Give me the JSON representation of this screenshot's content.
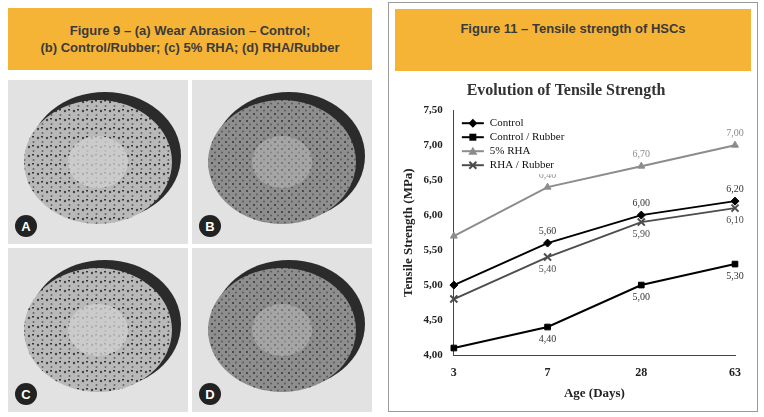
{
  "figure_9": {
    "caption": [
      "Figure 9 – (a) Wear Abrasion – Control;",
      "(b) Control/Rubber; (c) 5% RHA; (d) RHA/Rubber"
    ],
    "panels": [
      "A",
      "B",
      "C",
      "D"
    ]
  },
  "figure_11": {
    "caption": "Figure 11 – Tensile strength of HSCs"
  },
  "chart_data": {
    "type": "line",
    "title": "Evolution of Tensile Strength",
    "x_label": "Age (Days)",
    "y_label": "Tensile Strength (MPa)",
    "categories": [
      "3",
      "7",
      "28",
      "63"
    ],
    "series": [
      {
        "name": "Control",
        "color": "#000000",
        "marker": "diamond",
        "values": [
          5.0,
          5.6,
          6.0,
          6.2
        ],
        "value_labels": [
          null,
          "5,60",
          "6,00",
          "6,20"
        ]
      },
      {
        "name": "Control / Rubber",
        "color": "#000000",
        "marker": "square",
        "values": [
          4.1,
          4.4,
          5.0,
          5.3
        ],
        "value_labels": [
          null,
          "4,40",
          "5,00",
          "5,30"
        ]
      },
      {
        "name": "5% RHA",
        "color": "#8c8c8c",
        "marker": "triangle",
        "values": [
          5.7,
          6.4,
          6.7,
          7.0
        ],
        "value_labels": [
          null,
          "6,40",
          "6,70",
          "7,00"
        ]
      },
      {
        "name": "RHA / Rubber",
        "color": "#4d4d4d",
        "marker": "x",
        "values": [
          4.8,
          5.4,
          5.9,
          6.1
        ],
        "value_labels": [
          null,
          "5,40",
          "5,90",
          "6,10"
        ]
      }
    ],
    "ylim": [
      4,
      7.5
    ],
    "yticks": [
      {
        "value": 4,
        "label": "4,00"
      },
      {
        "value": 4.5,
        "label": "4,50"
      },
      {
        "value": 5,
        "label": "5,00"
      },
      {
        "value": 5.5,
        "label": "5,50"
      },
      {
        "value": 6,
        "label": "6,00"
      },
      {
        "value": 6.5,
        "label": "6,50"
      },
      {
        "value": 7,
        "label": "7,00"
      },
      {
        "value": 7.5,
        "label": "7,50"
      }
    ],
    "grid": false,
    "legend": "upper left",
    "data_labels": true
  }
}
